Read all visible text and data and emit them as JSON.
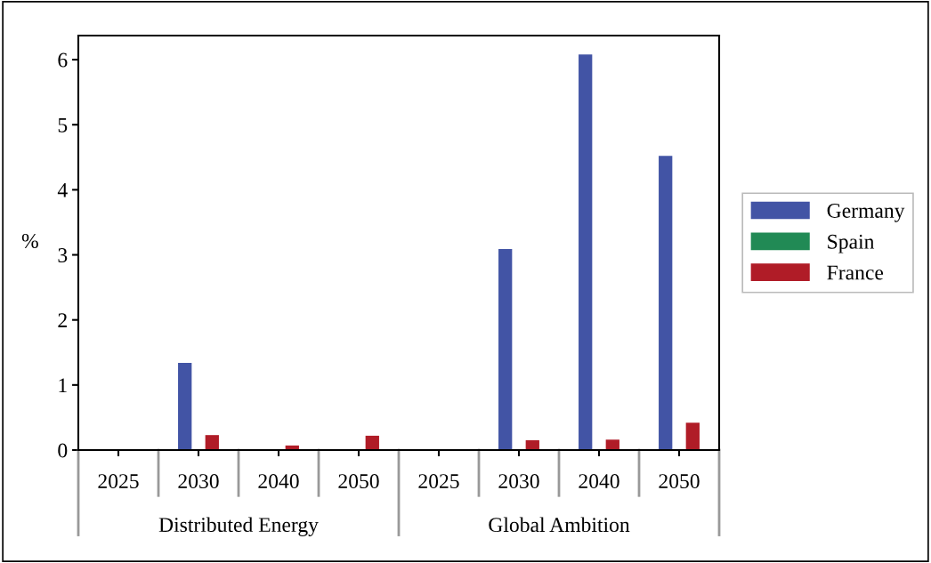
{
  "chart_data": {
    "type": "bar",
    "ylabel": "%",
    "categories": [
      "2025",
      "2030",
      "2040",
      "2050",
      "2025",
      "2030",
      "2040",
      "2050"
    ],
    "series": [
      {
        "name": "Germany",
        "color": "#4254a5",
        "values": [
          0,
          1.34,
          0,
          0,
          0,
          3.09,
          6.08,
          4.52
        ]
      },
      {
        "name": "Spain",
        "color": "#218a55",
        "values": [
          0,
          0,
          0,
          0,
          0,
          0,
          0,
          0
        ]
      },
      {
        "name": "France",
        "color": "#b01c27",
        "values": [
          0,
          0.23,
          0.07,
          0.22,
          0,
          0.15,
          0.16,
          0.42
        ]
      }
    ],
    "annotations": [
      "Distributed Energy",
      "Global Ambition"
    ],
    "ylim": [
      0,
      6.37
    ],
    "yticks": [
      0,
      1,
      2,
      3,
      4,
      5,
      6
    ],
    "grid": false,
    "legend": "right"
  }
}
